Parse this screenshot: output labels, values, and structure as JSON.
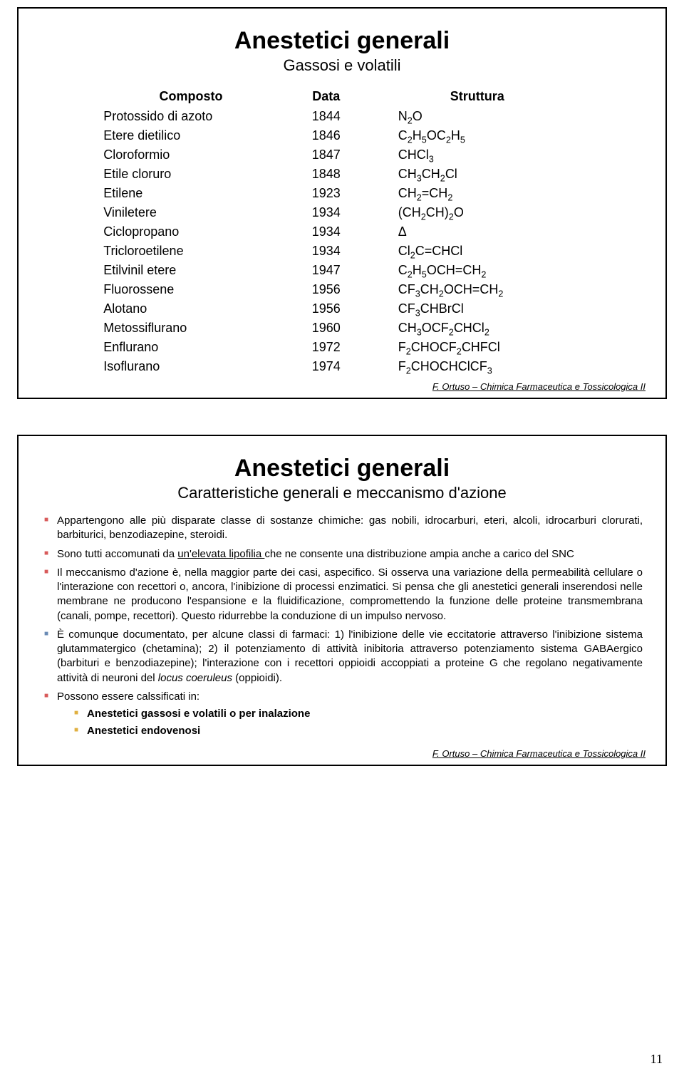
{
  "footer_credit": "F. Ortuso – Chimica Farmaceutica e Tossicologica II",
  "page_number": "11",
  "slide1": {
    "title": "Anestetici generali",
    "subtitle": "Gassosi e volatili",
    "columns": [
      "Composto",
      "Data",
      "Struttura"
    ],
    "rows": [
      {
        "name": "Protossido di azoto",
        "year": "1844",
        "formula": "N<sub>2</sub>O"
      },
      {
        "name": "Etere dietilico",
        "year": "1846",
        "formula": "C<sub>2</sub>H<sub>5</sub>OC<sub>2</sub>H<sub>5</sub>"
      },
      {
        "name": "Cloroformio",
        "year": "1847",
        "formula": "CHCl<sub>3</sub>"
      },
      {
        "name": "Etile cloruro",
        "year": "1848",
        "formula": "CH<sub>3</sub>CH<sub>2</sub>Cl"
      },
      {
        "name": "Etilene",
        "year": "1923",
        "formula": "CH<sub>2</sub>=CH<sub>2</sub>"
      },
      {
        "name": "Viniletere",
        "year": "1934",
        "formula": "(CH<sub>2</sub>CH)<sub>2</sub>O"
      },
      {
        "name": "Ciclopropano",
        "year": "1934",
        "formula": "Δ"
      },
      {
        "name": "Tricloroetilene",
        "year": "1934",
        "formula": "Cl<sub>2</sub>C=CHCl"
      },
      {
        "name": "Etilvinil etere",
        "year": "1947",
        "formula": "C<sub>2</sub>H<sub>5</sub>OCH=CH<sub>2</sub>"
      },
      {
        "name": "Fluorossene",
        "year": "1956",
        "formula": "CF<sub>3</sub>CH<sub>2</sub>OCH=CH<sub>2</sub>"
      },
      {
        "name": "Alotano",
        "year": "1956",
        "formula": "CF<sub>3</sub>CHBrCl"
      },
      {
        "name": "Metossiflurano",
        "year": "1960",
        "formula": "CH<sub>3</sub>OCF<sub>2</sub>CHCl<sub>2</sub>"
      },
      {
        "name": "Enflurano",
        "year": "1972",
        "formula": "F<sub>2</sub>CHOCF<sub>2</sub>CHFCl"
      },
      {
        "name": "Isoflurano",
        "year": "1974",
        "formula": "F<sub>2</sub>CHOCHClCF<sub>3</sub>"
      }
    ]
  },
  "slide2": {
    "title": "Anestetici generali",
    "subtitle": "Caratteristiche generali e meccanismo d'azione",
    "bullets": [
      {
        "color": "red",
        "html": "Appartengono alle più disparate classe di sostanze chimiche: gas nobili, idrocarburi, eteri, alcoli, idrocarburi clorurati, barbiturici, benzodiazepine, steroidi."
      },
      {
        "color": "red",
        "html": "Sono tutti accomunati da <span class=\"underline\">un'elevata lipofilia </span>che ne consente una distribuzione ampia anche a carico del SNC"
      },
      {
        "color": "red",
        "html": "Il meccanismo d'azione è, nella maggior parte dei casi, aspecifico. Si osserva una variazione della permeabilità cellulare o l'interazione con recettori o, ancora, l'inibizione di processi enzimatici. Si pensa che gli anestetici generali inserendosi nelle membrane ne producono l'espansione e la fluidificazione, compromettendo la funzione delle proteine transmembrana (canali, pompe, recettori). Questo ridurrebbe la conduzione di un impulso nervoso."
      },
      {
        "color": "blue",
        "html": "È comunque documentato, per alcune classi di farmaci: 1) l'inibizione delle vie eccitatorie attraverso l'inibizione sistema glutammatergico (chetamina); 2) il potenziamento di attività inibitoria attraverso potenziamento sistema GABAergico (barbituri e benzodiazepine); l'interazione con i recettori oppioidi accoppiati a proteine G che regolano negativamente attività di neuroni del <span class=\"italic\">locus coeruleus</span> (oppioidi)."
      },
      {
        "color": "red",
        "html": "Possono essere calssificati in:"
      }
    ],
    "sub_bullets": [
      "Anestetici gassosi e volatili o per inalazione",
      "Anestetici endovenosi"
    ]
  }
}
